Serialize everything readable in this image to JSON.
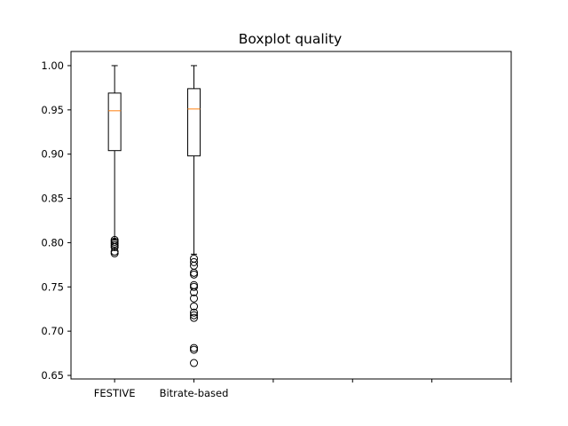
{
  "chart_data": {
    "type": "boxplot",
    "title": "Boxplot quality",
    "xlabel": "",
    "ylabel": "",
    "ylim": [
      0.646,
      1.016
    ],
    "xlim": [
      0.45,
      6.0
    ],
    "yticks": [
      0.65,
      0.7,
      0.75,
      0.8,
      0.85,
      0.9,
      0.95,
      1.0
    ],
    "ytick_labels": [
      "0.65",
      "0.70",
      "0.75",
      "0.80",
      "0.85",
      "0.90",
      "0.95",
      "1.00"
    ],
    "xticks": [
      1,
      2,
      3,
      4,
      5,
      6
    ],
    "xtick_labels": [
      "FESTIVE",
      "Bitrate-based",
      "",
      "",
      "",
      ""
    ],
    "grid": false,
    "colors": {
      "box": "#000000",
      "median": "#ff7f0e",
      "flier": "#000000"
    },
    "boxes": [
      {
        "label": "FESTIVE",
        "whisker_low": 0.804,
        "q1": 0.904,
        "median": 0.949,
        "q3": 0.969,
        "whisker_high": 1.0,
        "fliers": [
          0.803,
          0.801,
          0.799,
          0.797,
          0.795,
          0.79,
          0.788
        ]
      },
      {
        "label": "Bitrate-based",
        "whisker_low": 0.787,
        "q1": 0.898,
        "median": 0.951,
        "q3": 0.974,
        "whisker_high": 1.0,
        "fliers": [
          0.782,
          0.778,
          0.774,
          0.766,
          0.764,
          0.752,
          0.75,
          0.744,
          0.737,
          0.728,
          0.721,
          0.718,
          0.715,
          0.681,
          0.679,
          0.664
        ]
      }
    ]
  }
}
